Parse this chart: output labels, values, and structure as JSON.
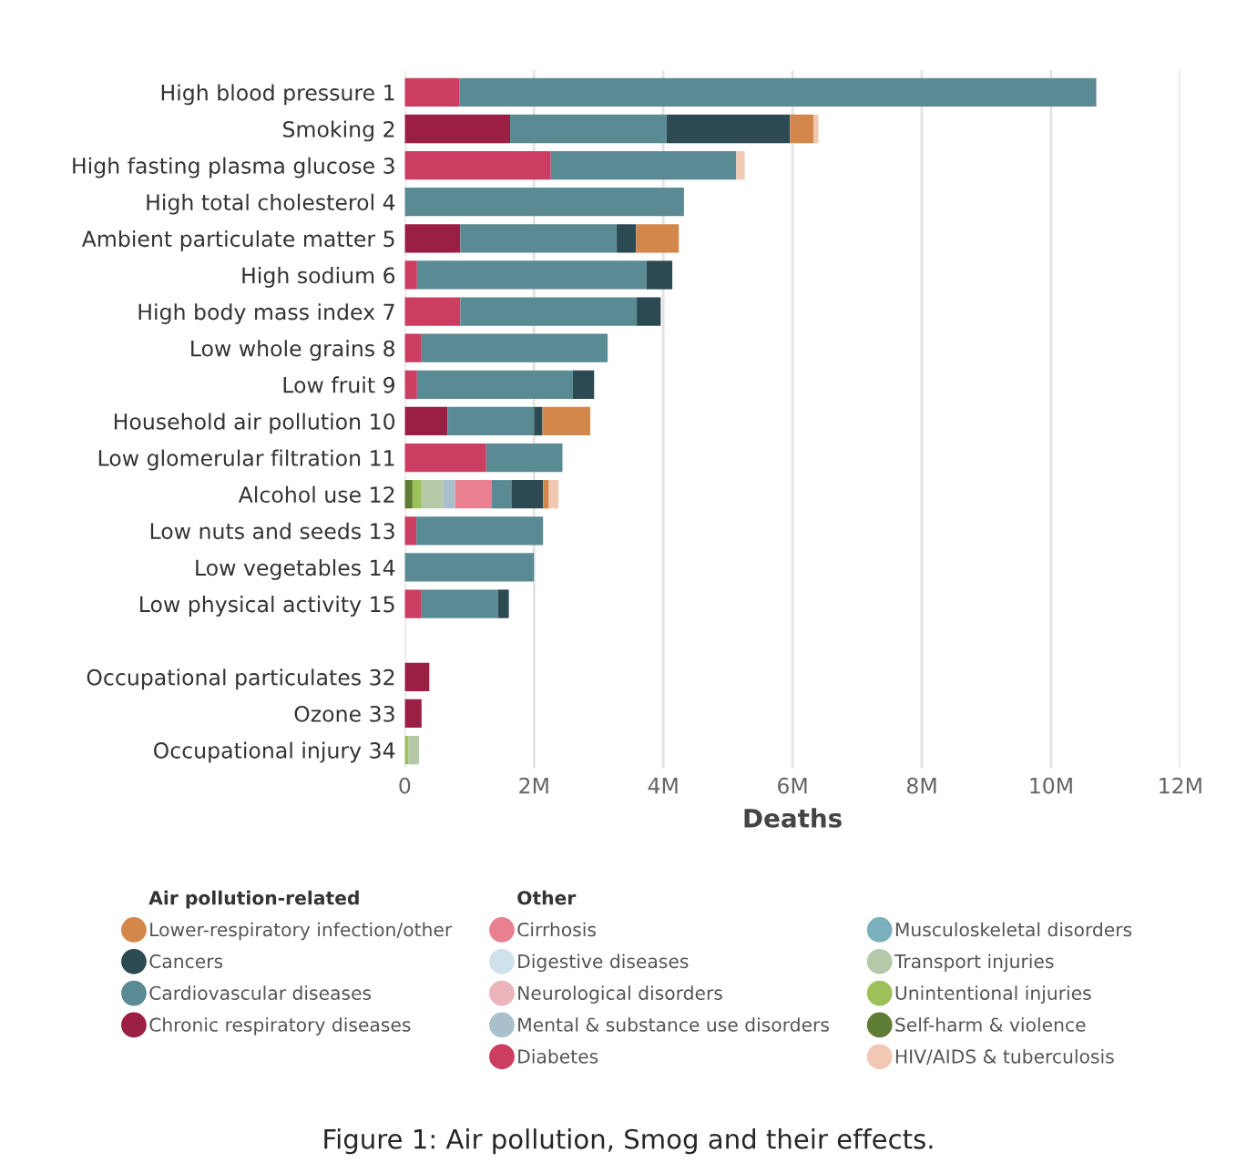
{
  "chart_data": {
    "type": "bar",
    "orientation": "horizontal",
    "stacked": true,
    "categories": [
      "High blood pressure 1",
      "Smoking 2",
      "High fasting plasma glucose 3",
      "High total cholesterol 4",
      "Ambient particulate matter 5",
      "High sodium 6",
      "High body mass index 7",
      "Low whole grains 8",
      "Low fruit 9",
      "Household air pollution 10",
      "Low glomerular filtration 11",
      "Alcohol use 12",
      "Low nuts and seeds 13",
      "Low vegetables 14",
      "Low physical activity 15",
      null,
      "Occupational particulates 32",
      "Ozone 33",
      "Occupational injury 34"
    ],
    "series": [
      {
        "name": "Self-harm & violence",
        "color": "#5e7d34",
        "values": [
          null,
          null,
          null,
          null,
          null,
          null,
          null,
          null,
          null,
          null,
          null,
          0.12,
          null,
          null,
          null,
          null,
          null,
          null,
          null
        ]
      },
      {
        "name": "Unintentional injuries",
        "color": "#9cc05a",
        "values": [
          null,
          null,
          null,
          null,
          null,
          null,
          null,
          null,
          null,
          null,
          null,
          0.14,
          null,
          null,
          null,
          null,
          null,
          null,
          0.06
        ]
      },
      {
        "name": "Transport injuries",
        "color": "#b5c9a8",
        "values": [
          null,
          null,
          null,
          null,
          null,
          null,
          null,
          null,
          null,
          null,
          null,
          0.33,
          null,
          null,
          null,
          null,
          null,
          null,
          0.16
        ]
      },
      {
        "name": "Mental & substance use disorders",
        "color": "#a9c0cc",
        "values": [
          null,
          null,
          null,
          null,
          null,
          null,
          null,
          null,
          null,
          null,
          null,
          0.19,
          null,
          null,
          null,
          null,
          null,
          null,
          null
        ]
      },
      {
        "name": "Cirrhosis",
        "color": "#e8808f",
        "values": [
          null,
          null,
          null,
          null,
          null,
          null,
          null,
          null,
          null,
          null,
          null,
          0.56,
          null,
          null,
          null,
          null,
          null,
          null,
          null
        ]
      },
      {
        "name": "Neurological disorders",
        "color": "#ecb5bb",
        "values": [
          null,
          null,
          null,
          null,
          null,
          null,
          null,
          null,
          null,
          null,
          null,
          null,
          null,
          null,
          null,
          null,
          null,
          null,
          null
        ]
      },
      {
        "name": "Digestive diseases",
        "color": "#cfe2ec",
        "values": [
          null,
          null,
          null,
          null,
          null,
          null,
          null,
          null,
          null,
          null,
          null,
          null,
          null,
          null,
          null,
          null,
          null,
          null,
          null
        ]
      },
      {
        "name": "Diabetes",
        "color": "#cc3d62",
        "values": [
          0.85,
          null,
          2.26,
          null,
          null,
          0.19,
          0.86,
          0.26,
          0.19,
          null,
          1.26,
          null,
          0.18,
          null,
          0.26,
          null,
          null,
          null,
          null
        ]
      },
      {
        "name": "Chronic respiratory diseases",
        "color": "#9b1f45",
        "values": [
          null,
          1.63,
          null,
          null,
          0.86,
          null,
          null,
          null,
          null,
          0.66,
          null,
          null,
          null,
          null,
          null,
          null,
          0.38,
          0.26,
          null
        ]
      },
      {
        "name": "Cardiovascular diseases",
        "color": "#5a8a94",
        "values": [
          9.85,
          2.42,
          2.87,
          4.32,
          2.42,
          3.55,
          2.73,
          2.88,
          2.41,
          1.34,
          1.18,
          0.31,
          1.96,
          2.0,
          1.18,
          null,
          null,
          null,
          null
        ]
      },
      {
        "name": "Musculoskeletal disorders",
        "color": "#7ab0bc",
        "values": [
          null,
          null,
          null,
          null,
          null,
          null,
          null,
          null,
          null,
          null,
          null,
          null,
          null,
          null,
          null,
          null,
          null,
          null,
          null
        ]
      },
      {
        "name": "Cancers",
        "color": "#2c4a52",
        "values": [
          null,
          1.91,
          null,
          null,
          0.3,
          0.4,
          0.37,
          null,
          0.33,
          0.13,
          null,
          0.49,
          null,
          null,
          0.17,
          null,
          null,
          null,
          null
        ]
      },
      {
        "name": "Lower-respiratory infection/other",
        "color": "#d4874a",
        "values": [
          null,
          0.37,
          null,
          null,
          0.66,
          null,
          null,
          null,
          null,
          0.74,
          null,
          0.09,
          null,
          null,
          null,
          null,
          null,
          null,
          null
        ]
      },
      {
        "name": "HIV/AIDS & tuberculosis",
        "color": "#f0c8b4",
        "values": [
          null,
          0.07,
          0.13,
          null,
          null,
          null,
          null,
          null,
          null,
          null,
          null,
          0.15,
          null,
          null,
          null,
          null,
          null,
          null,
          null
        ]
      }
    ],
    "xlabel": "Deaths",
    "xlim": [
      0,
      12
    ],
    "xticks": [
      0,
      {
        "value": 2,
        "label": "2M"
      },
      {
        "value": 4,
        "label": "4M"
      },
      {
        "value": 6,
        "label": "6M"
      },
      {
        "value": 8,
        "label": "8M"
      },
      {
        "value": 10,
        "label": "10M"
      },
      {
        "value": 12,
        "label": "12M"
      }
    ],
    "grid": "x",
    "legend": "bottom",
    "annotations": [
      "Air pollution-related",
      "Other",
      "Figure 1: Air pollution, Smog and their effects."
    ]
  }
}
